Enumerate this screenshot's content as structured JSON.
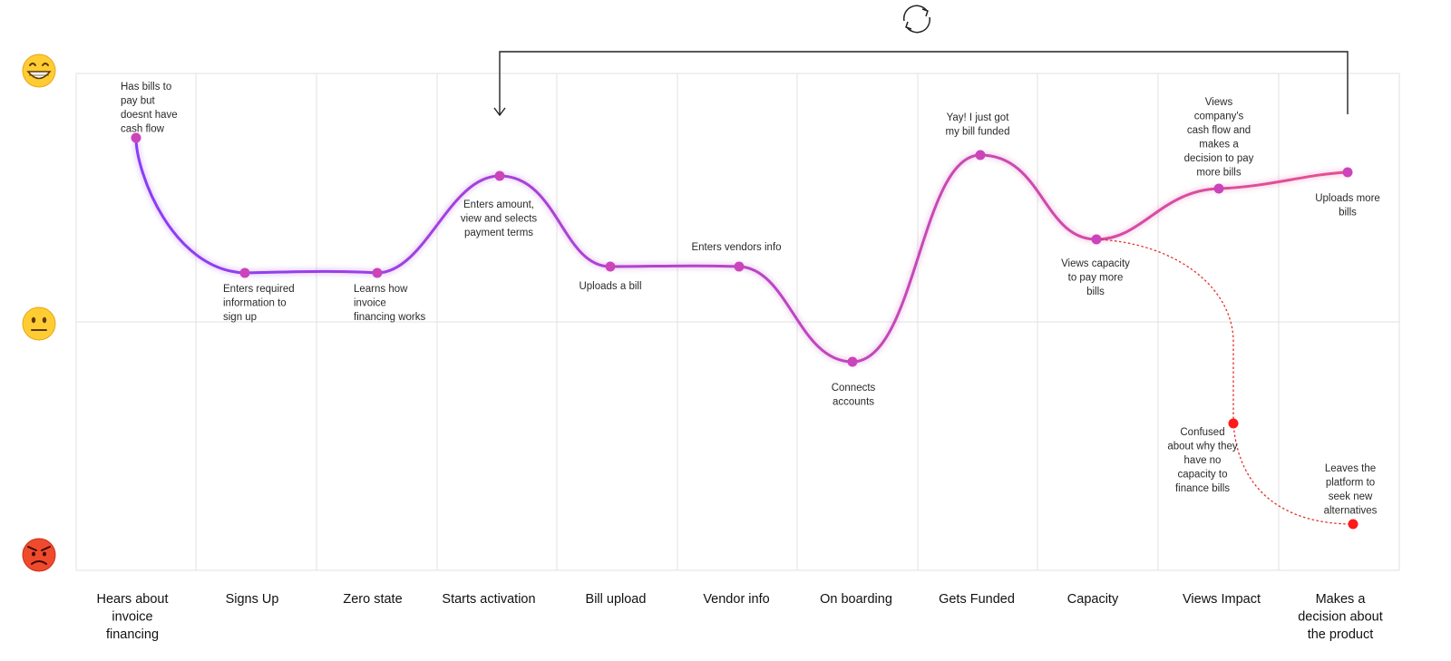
{
  "stages": [
    [
      "Hears about",
      "invoice",
      "financing"
    ],
    [
      "Signs Up"
    ],
    [
      "Zero state"
    ],
    [
      "Starts activation"
    ],
    [
      "Bill upload"
    ],
    [
      "Vendor info"
    ],
    [
      "On boarding"
    ],
    [
      "Gets Funded"
    ],
    [
      "Capacity"
    ],
    [
      "Views Impact"
    ],
    [
      "Makes a",
      "decision about",
      "the product"
    ]
  ],
  "moods": [
    {
      "name": "happy",
      "emoji": "😁"
    },
    {
      "name": "neutral",
      "emoji": "😐"
    },
    {
      "name": "angry",
      "emoji": "😡"
    }
  ],
  "main_points": [
    {
      "lines": [
        "Has bills to",
        "pay but",
        "doesnt have",
        "cash flow"
      ]
    },
    {
      "lines": [
        "Enters required",
        "information to",
        "sign up"
      ]
    },
    {
      "lines": [
        "Learns how",
        "invoice",
        "financing works"
      ]
    },
    {
      "lines": [
        "Enters amount,",
        "view and selects",
        "payment terms"
      ]
    },
    {
      "lines": [
        "Uploads a bill"
      ]
    },
    {
      "lines": [
        "Enters vendors info"
      ]
    },
    {
      "lines": [
        "Connects",
        "accounts"
      ]
    },
    {
      "lines": [
        "Yay! I just got",
        "my bill funded"
      ]
    },
    {
      "lines": [
        "Views capacity",
        "to pay more",
        "bills"
      ]
    },
    {
      "lines": [
        "Views",
        "company's",
        "cash flow and",
        "makes a",
        "decision to pay",
        "more bills"
      ]
    },
    {
      "lines": [
        "Uploads more",
        "bills"
      ]
    }
  ],
  "alt_points": [
    {
      "lines": [
        "Confused",
        "about why they",
        "have no",
        "capacity to",
        "finance bills"
      ]
    },
    {
      "lines": [
        "Leaves the",
        "platform to",
        "seek new",
        "alternatives"
      ]
    }
  ],
  "colors": {
    "curve_start": "#8b3cf7",
    "curve_end": "#e8508f",
    "point_main": "#cc44bb",
    "point_alt": "#ff1a1a",
    "alt_path": "#e0302a",
    "loop_arrow": "#222222"
  },
  "icons": {
    "loop": "refresh-cycle-icon"
  }
}
